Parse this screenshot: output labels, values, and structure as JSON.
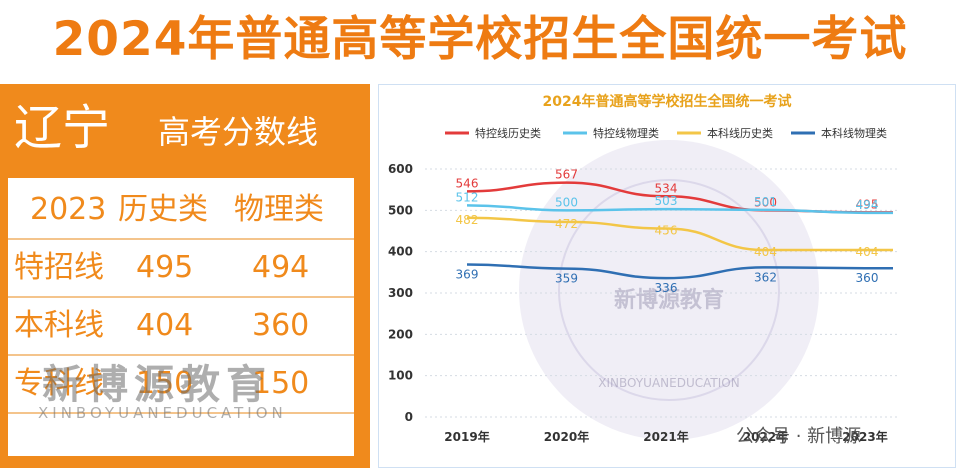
{
  "title": "2024年普通高等学校招生全国统一考试",
  "province": "辽宁",
  "province_subtitle": "高考分数线",
  "table": {
    "year": "2023",
    "headers": [
      "历史类",
      "物理类"
    ],
    "rows": [
      {
        "label": "特招线",
        "history": "495",
        "physics": "494"
      },
      {
        "label": "本科线",
        "history": "404",
        "physics": "360"
      },
      {
        "label": "专科线",
        "history": "150",
        "physics": "150"
      }
    ]
  },
  "watermark": {
    "cn": "新博源教育",
    "en": "XINBOYUANEDUCATION"
  },
  "chart_watermark": {
    "cn": "新博源教育",
    "en": "XINBOYUANEDUCATION"
  },
  "footer": {
    "label": "公众号 · 新博源"
  },
  "colors": {
    "orange": "#f08a1c",
    "series": [
      "#e33b3b",
      "#5bc3ea",
      "#f3c647",
      "#2f6fb3"
    ]
  },
  "chart_data": {
    "type": "line",
    "title": "2024年普通高等学校招生全国统一考试",
    "categories": [
      "2019年",
      "2020年",
      "2021年",
      "2022年",
      "2023年"
    ],
    "ylim": [
      0,
      600
    ],
    "yticks": [
      0,
      100,
      200,
      300,
      400,
      500,
      600
    ],
    "grid": true,
    "legend": "top",
    "series": [
      {
        "name": "特控线历史类",
        "values": [
          546,
          567,
          534,
          500,
          495
        ]
      },
      {
        "name": "特控线物理类",
        "values": [
          512,
          500,
          503,
          501,
          494
        ]
      },
      {
        "name": "本科线历史类",
        "values": [
          482,
          472,
          456,
          404,
          404
        ]
      },
      {
        "name": "本科线物理类",
        "values": [
          369,
          359,
          336,
          362,
          360
        ]
      }
    ]
  }
}
